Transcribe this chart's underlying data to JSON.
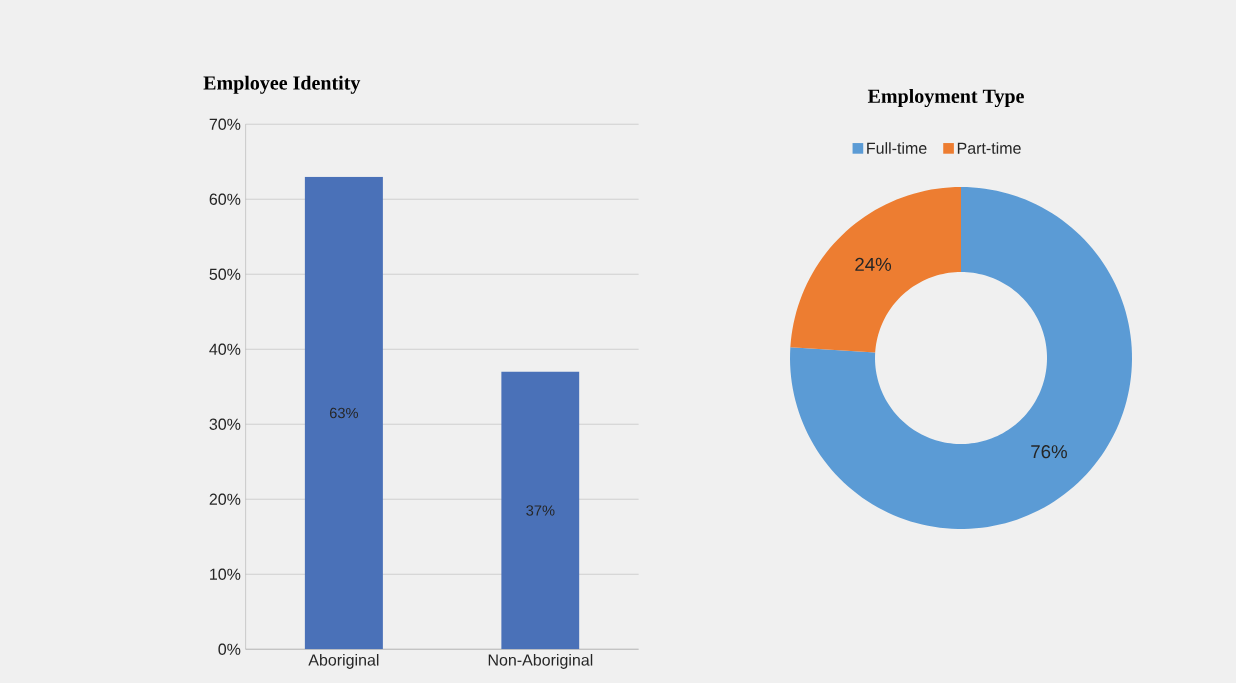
{
  "chart_data": [
    {
      "type": "bar",
      "title": "Employee Identity",
      "categories": [
        "Aboriginal",
        "Non-Aboriginal"
      ],
      "values": [
        63,
        37
      ],
      "color": "#4a71b8",
      "value_labels": [
        "63%",
        "37%"
      ],
      "ylim": [
        0,
        70
      ],
      "yticks": [
        {
          "value": 0,
          "label": "0%"
        },
        {
          "value": 10,
          "label": "10%"
        },
        {
          "value": 20,
          "label": "20%"
        },
        {
          "value": 30,
          "label": "30%"
        },
        {
          "value": 40,
          "label": "40%"
        },
        {
          "value": 50,
          "label": "50%"
        },
        {
          "value": 60,
          "label": "60%"
        },
        {
          "value": 70,
          "label": "70%"
        }
      ],
      "grid": "y"
    },
    {
      "type": "donut",
      "title": "Employment Type",
      "categories": [
        "Full-time",
        "Part-time"
      ],
      "values": [
        76,
        24
      ],
      "colors": [
        "#5b9bd5",
        "#ed7d31"
      ],
      "value_labels": [
        "76%",
        "24%"
      ],
      "legend": "top"
    }
  ]
}
